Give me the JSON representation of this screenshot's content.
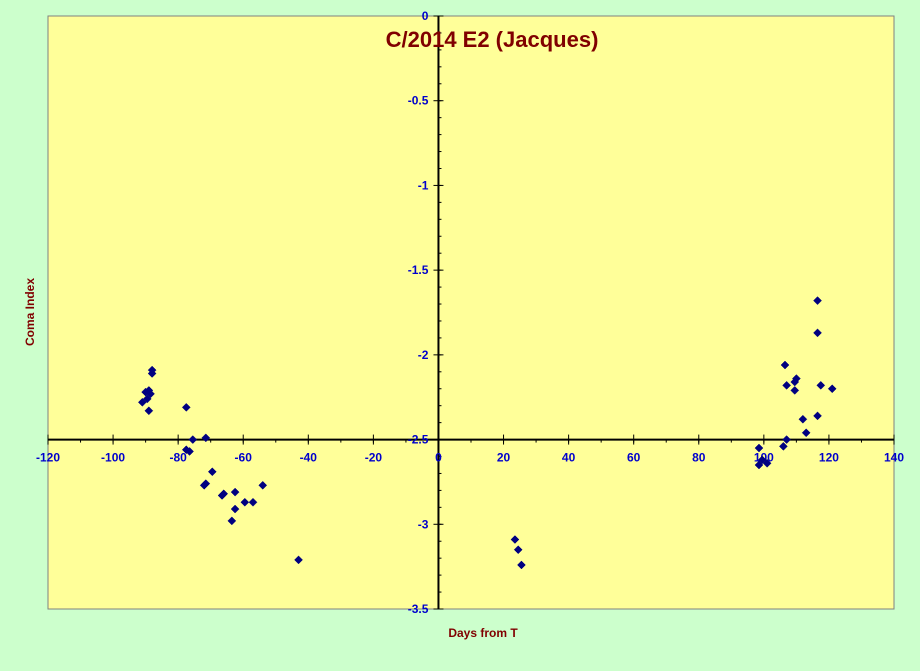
{
  "chart_data": {
    "type": "scatter",
    "title": "C/2014 E2 (Jacques)",
    "xlabel": "Days from T",
    "ylabel": "Coma Index",
    "xlim": [
      -120,
      140
    ],
    "ylim": [
      -3.5,
      0
    ],
    "x_ticks": [
      -120,
      -100,
      -80,
      -60,
      -40,
      -20,
      0,
      20,
      40,
      60,
      80,
      100,
      120,
      140
    ],
    "y_ticks": [
      0,
      -0.5,
      -1,
      -1.5,
      -2,
      -2.5,
      -3,
      -3.5
    ],
    "x_tick_labels": [
      "-120",
      "-100",
      "-80",
      "-60",
      "-40",
      "-20",
      "0",
      "20",
      "40",
      "60",
      "80",
      "100",
      "120",
      "140"
    ],
    "y_tick_labels": [
      "0",
      "-0.5",
      "-1",
      "-1.5",
      "-2",
      "-2.5",
      "-3",
      "-3.5"
    ],
    "x_axis_crosses_at": -2.5,
    "grid": false,
    "legend": "none",
    "colors": {
      "page_background": "#ccffcc",
      "plot_background": "#ffff99",
      "marker": "#000080",
      "title": "#800000",
      "tick_labels": "#0000cc"
    },
    "series": [
      {
        "marker": "diamond",
        "points": [
          [
            -88,
            -2.09
          ],
          [
            -88,
            -2.11
          ],
          [
            -89,
            -2.21
          ],
          [
            -88.5,
            -2.23
          ],
          [
            -90,
            -2.22
          ],
          [
            -89.5,
            -2.26
          ],
          [
            -91,
            -2.28
          ],
          [
            -89,
            -2.33
          ],
          [
            -77.5,
            -2.31
          ],
          [
            -77.5,
            -2.56
          ],
          [
            -76.5,
            -2.57
          ],
          [
            -75.5,
            -2.5
          ],
          [
            -71.5,
            -2.49
          ],
          [
            -69.5,
            -2.69
          ],
          [
            -71.5,
            -2.76
          ],
          [
            -72,
            -2.77
          ],
          [
            -66,
            -2.82
          ],
          [
            -66.5,
            -2.83
          ],
          [
            -62.5,
            -2.81
          ],
          [
            -62.5,
            -2.91
          ],
          [
            -59.5,
            -2.87
          ],
          [
            -57,
            -2.87
          ],
          [
            -54,
            -2.77
          ],
          [
            -63.5,
            -2.98
          ],
          [
            -43,
            -3.21
          ],
          [
            23.5,
            -3.09
          ],
          [
            24.5,
            -3.15
          ],
          [
            25.5,
            -3.24
          ],
          [
            98.5,
            -2.55
          ],
          [
            98.5,
            -2.65
          ],
          [
            99.5,
            -2.62
          ],
          [
            101,
            -2.64
          ],
          [
            106,
            -2.54
          ],
          [
            107,
            -2.5
          ],
          [
            106.5,
            -2.06
          ],
          [
            107,
            -2.18
          ],
          [
            109.5,
            -2.16
          ],
          [
            110,
            -2.14
          ],
          [
            109.5,
            -2.21
          ],
          [
            112,
            -2.38
          ],
          [
            113,
            -2.46
          ],
          [
            116.5,
            -1.68
          ],
          [
            116.5,
            -1.87
          ],
          [
            117.5,
            -2.18
          ],
          [
            121,
            -2.2
          ],
          [
            116.5,
            -2.36
          ]
        ]
      }
    ]
  }
}
